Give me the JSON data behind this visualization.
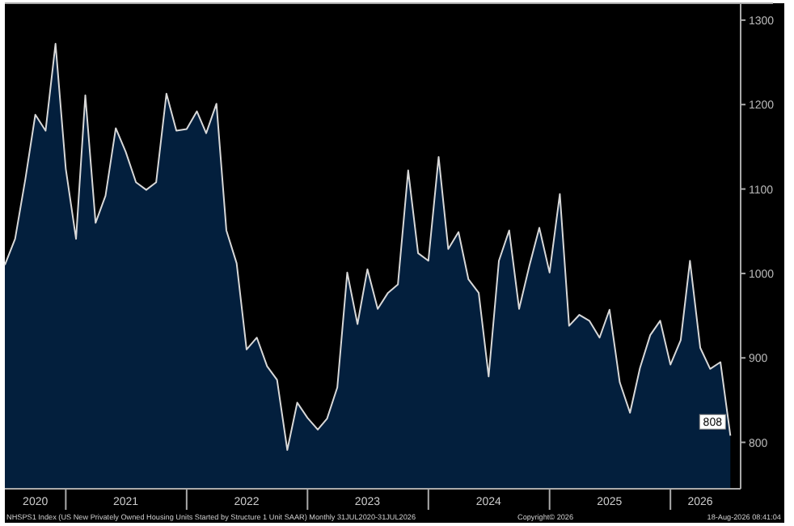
{
  "chart_data": {
    "type": "area",
    "x": [
      "2020-07",
      "2020-08",
      "2020-09",
      "2020-10",
      "2020-11",
      "2020-12",
      "2021-01",
      "2021-02",
      "2021-03",
      "2021-04",
      "2021-05",
      "2021-06",
      "2021-07",
      "2021-08",
      "2021-09",
      "2021-10",
      "2021-11",
      "2021-12",
      "2022-01",
      "2022-02",
      "2022-03",
      "2022-04",
      "2022-05",
      "2022-06",
      "2022-07",
      "2022-08",
      "2022-09",
      "2022-10",
      "2022-11",
      "2022-12",
      "2023-01",
      "2023-02",
      "2023-03",
      "2023-04",
      "2023-05",
      "2023-06",
      "2023-07",
      "2023-08",
      "2023-09",
      "2023-10",
      "2023-11",
      "2023-12",
      "2024-01",
      "2024-02",
      "2024-03",
      "2024-04",
      "2024-05",
      "2024-06",
      "2024-07",
      "2024-08",
      "2024-09",
      "2024-10",
      "2024-11",
      "2024-12",
      "2025-01",
      "2025-02",
      "2025-03",
      "2025-04",
      "2025-05",
      "2025-06",
      "2025-07",
      "2025-08",
      "2025-09",
      "2025-10",
      "2025-11",
      "2025-12",
      "2026-01",
      "2026-02",
      "2026-03",
      "2026-04",
      "2026-05",
      "2026-06",
      "2026-07"
    ],
    "series": [
      {
        "color": "#031f3d",
        "values": [
          1010,
          1041,
          1112,
          1188,
          1169,
          1272,
          1124,
          1041,
          1211,
          1060,
          1092,
          1172,
          1144,
          1108,
          1099,
          1108,
          1213,
          1169,
          1171,
          1192,
          1166,
          1201,
          1051,
          1012,
          910,
          924,
          890,
          874,
          791,
          847,
          829,
          815,
          828,
          865,
          1001,
          940,
          1005,
          958,
          977,
          987,
          1122,
          1024,
          1015,
          1138,
          1029,
          1049,
          993,
          977,
          878,
          1015,
          1051,
          958,
          1009,
          1054,
          1001,
          1094,
          938,
          951,
          944,
          924,
          957,
          871,
          835,
          888,
          927,
          944,
          892,
          921,
          1015,
          912,
          887,
          895,
          808
        ],
        "value_labels": [
          null,
          null,
          null,
          null,
          null,
          null,
          null,
          null,
          null,
          null,
          null,
          null,
          null,
          null,
          null,
          null,
          null,
          null,
          null,
          null,
          null,
          null,
          null,
          null,
          null,
          null,
          null,
          null,
          null,
          null,
          null,
          null,
          null,
          null,
          null,
          null,
          null,
          null,
          null,
          null,
          null,
          null,
          null,
          null,
          null,
          null,
          null,
          null,
          null,
          null,
          null,
          null,
          null,
          null,
          null,
          null,
          null,
          null,
          null,
          null,
          null,
          null,
          null,
          null,
          null,
          null,
          null,
          null,
          null,
          null,
          null,
          null,
          "808"
        ]
      }
    ],
    "xlim": [
      "2020-07",
      "2026-08"
    ],
    "xticks": [
      {
        "value": "2020-10",
        "label": "2020"
      },
      {
        "value": "2021-01",
        "label": null
      },
      {
        "value": "2021-07",
        "label": "2021"
      },
      {
        "value": "2022-01",
        "label": null
      },
      {
        "value": "2022-07",
        "label": "2022"
      },
      {
        "value": "2023-01",
        "label": null
      },
      {
        "value": "2023-07",
        "label": "2023"
      },
      {
        "value": "2024-01",
        "label": null
      },
      {
        "value": "2024-07",
        "label": "2024"
      },
      {
        "value": "2025-01",
        "label": null
      },
      {
        "value": "2025-07",
        "label": "2025"
      },
      {
        "value": "2026-01",
        "label": null
      },
      {
        "value": "2026-04",
        "label": "2026"
      }
    ],
    "ylim": [
      745,
      1320
    ],
    "yticks": [
      800,
      900,
      1000,
      1100,
      1200,
      1300
    ],
    "grid": false,
    "annotations": [
      "NHSPS1 Index (US New Privately Owned Housing Units Started by Structure 1 Unit SAAR) Monthly 31JUL2020-31JUL2026",
      "Copyright© 2026",
      "18-Aug-2026 08:41:04"
    ]
  }
}
